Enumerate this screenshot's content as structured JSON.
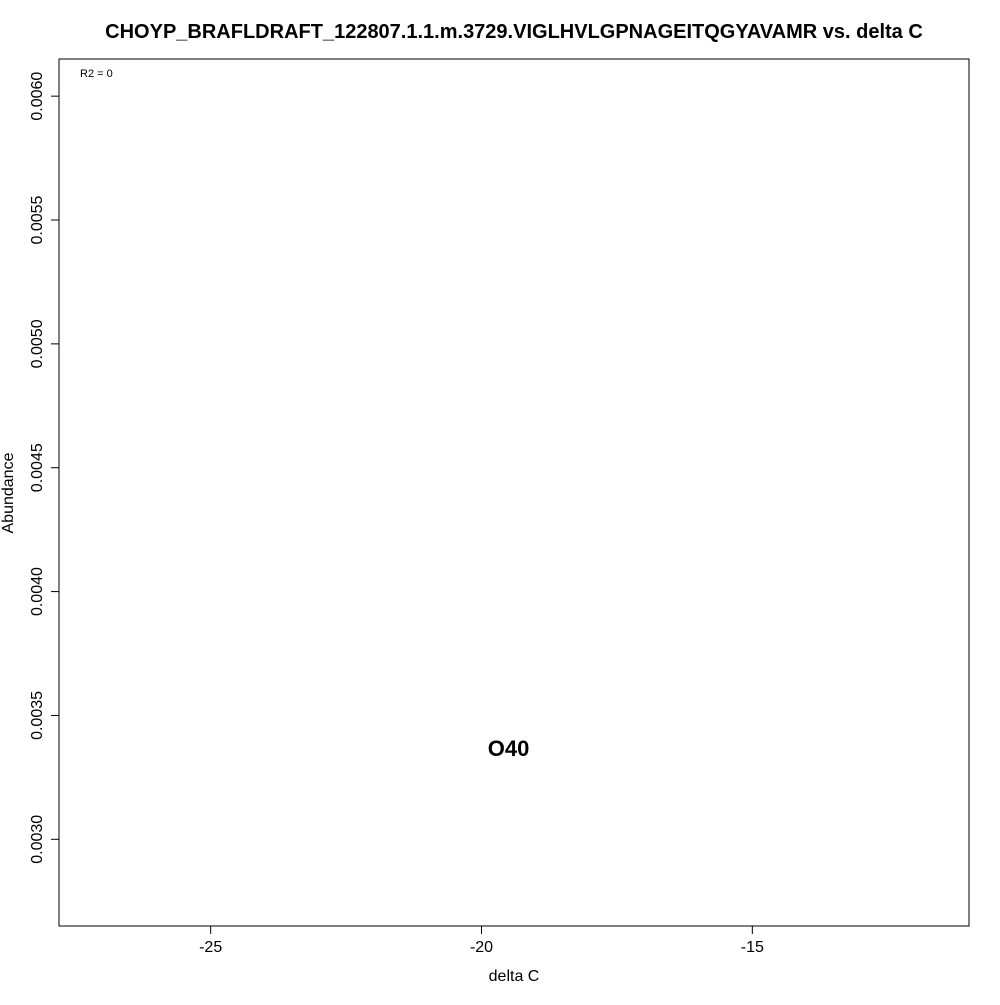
{
  "chart_data": {
    "type": "scatter",
    "title": "CHOYP_BRAFLDRAFT_122807.1.1.m.3729.VIGLHVLGPNAGEITQGYAVAMR vs. delta C",
    "xlabel": "delta C",
    "ylabel": "Abundance",
    "xlim": [
      -27.8,
      -11.0
    ],
    "ylim": [
      0.00265,
      0.00615
    ],
    "x_ticks": [
      -25,
      -20,
      -15
    ],
    "x_tick_labels": [
      "-25",
      "-20",
      "-15"
    ],
    "y_ticks": [
      0.003,
      0.0035,
      0.004,
      0.0045,
      0.005,
      0.0055,
      0.006
    ],
    "y_tick_labels": [
      "0.0030",
      "0.0035",
      "0.0040",
      "0.0045",
      "0.0050",
      "0.0055",
      "0.0060"
    ],
    "annotation": "R2 = 0",
    "grid": false,
    "points": [
      {
        "label": "O40",
        "x": -19.5,
        "y": 0.00336
      }
    ]
  }
}
